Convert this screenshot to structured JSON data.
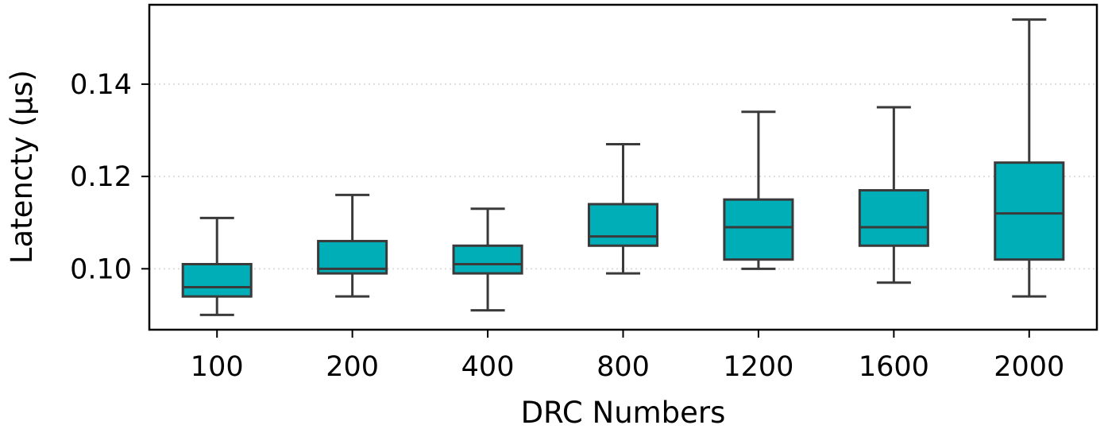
{
  "chart_data": {
    "type": "box",
    "xlabel": "DRC Numbers",
    "ylabel": "Latencty (µs)",
    "ylim": [
      0.0868,
      0.1572
    ],
    "yticks": [
      0.1,
      0.12,
      0.14
    ],
    "ytick_labels": [
      "0.10",
      "0.12",
      "0.14"
    ],
    "grid": "y-dotted",
    "categories": [
      "100",
      "200",
      "400",
      "800",
      "1200",
      "1600",
      "2000"
    ],
    "boxes": [
      {
        "whisker_low": 0.09,
        "q1": 0.094,
        "median": 0.096,
        "q3": 0.101,
        "whisker_high": 0.111
      },
      {
        "whisker_low": 0.094,
        "q1": 0.099,
        "median": 0.1,
        "q3": 0.106,
        "whisker_high": 0.116
      },
      {
        "whisker_low": 0.091,
        "q1": 0.099,
        "median": 0.101,
        "q3": 0.105,
        "whisker_high": 0.113
      },
      {
        "whisker_low": 0.099,
        "q1": 0.105,
        "median": 0.107,
        "q3": 0.114,
        "whisker_high": 0.127
      },
      {
        "whisker_low": 0.1,
        "q1": 0.102,
        "median": 0.109,
        "q3": 0.115,
        "whisker_high": 0.134
      },
      {
        "whisker_low": 0.097,
        "q1": 0.105,
        "median": 0.109,
        "q3": 0.117,
        "whisker_high": 0.135
      },
      {
        "whisker_low": 0.094,
        "q1": 0.102,
        "median": 0.112,
        "q3": 0.123,
        "whisker_high": 0.154
      }
    ],
    "colors": {
      "box_fill": "#00AEB8",
      "line": "#3a3a3a",
      "grid": "#dddddd",
      "axis": "#000000"
    }
  }
}
